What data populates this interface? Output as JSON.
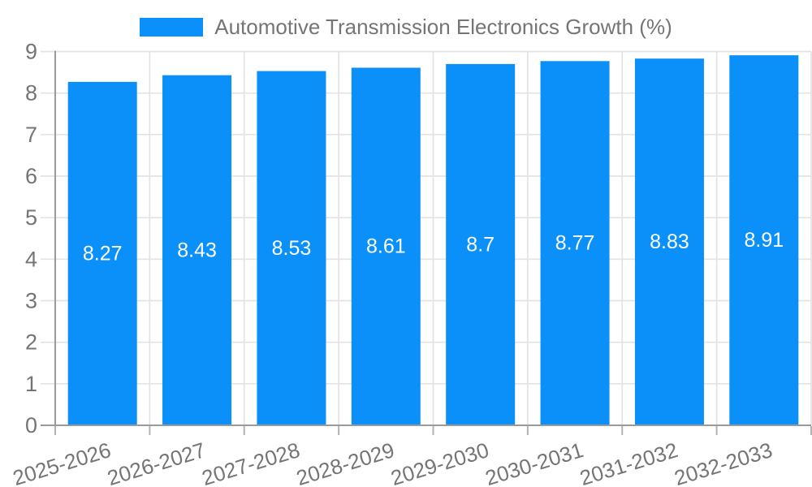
{
  "chart_data": {
    "type": "bar",
    "title": "Automotive Transmission Electronics Growth (%)",
    "categories": [
      "2025-2026",
      "2026-2027",
      "2027-2028",
      "2028-2029",
      "2029-2030",
      "2030-2031",
      "2031-2032",
      "2032-2033"
    ],
    "values": [
      8.27,
      8.43,
      8.53,
      8.61,
      8.7,
      8.77,
      8.83,
      8.91
    ],
    "value_labels": [
      "8.27",
      "8.43",
      "8.53",
      "8.61",
      "8.7",
      "8.77",
      "8.83",
      "8.91"
    ],
    "xlabel": "",
    "ylabel": "",
    "ylim": [
      0,
      9
    ],
    "yticks": [
      0,
      1,
      2,
      3,
      4,
      5,
      6,
      7,
      8,
      9
    ],
    "grid": true,
    "legend_position": "top",
    "x_tick_rotation_deg": -17
  },
  "colors": {
    "bar": "#0a90f8",
    "value_label": "#ffffff",
    "axis_text": "#757575",
    "grid_line": "#e3e3e3",
    "axis_line": "#9a9a9a",
    "tick_mark": "#b3b3b3",
    "background": "#ffffff"
  }
}
